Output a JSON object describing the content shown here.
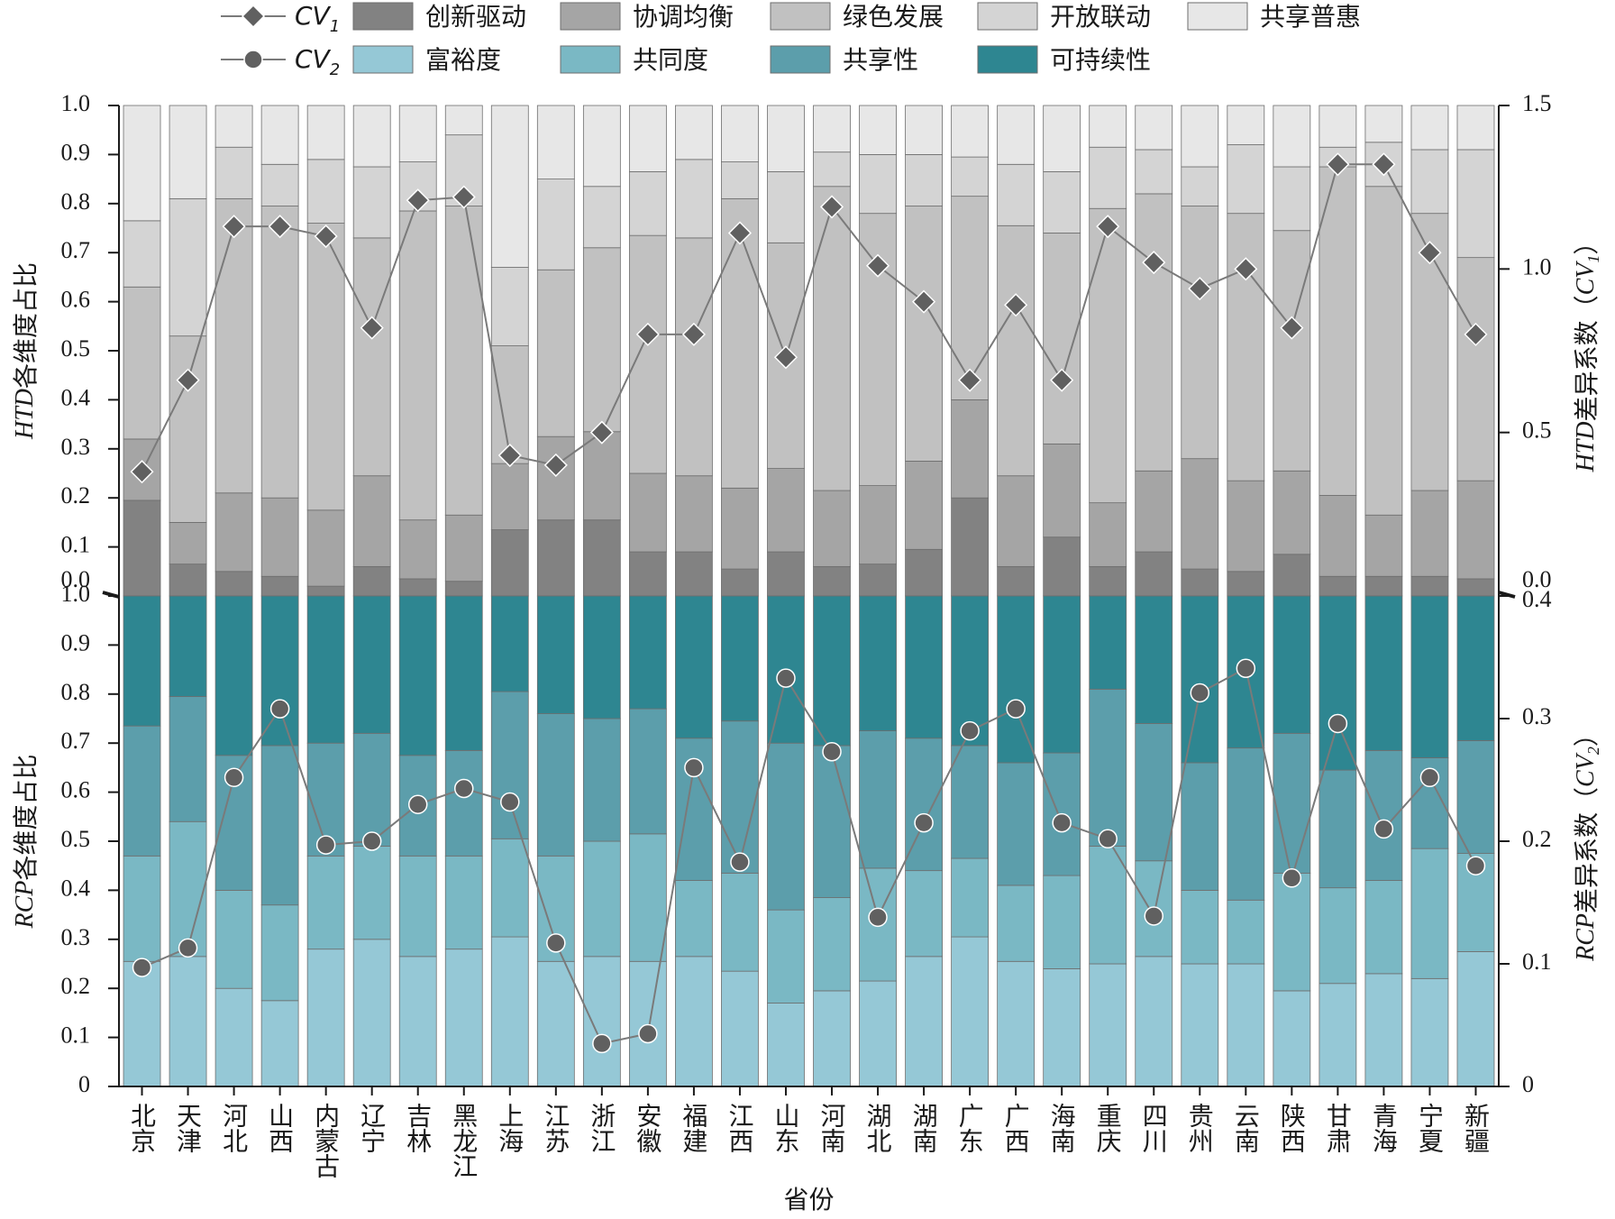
{
  "chart_data": [
    {
      "type": "bar",
      "stacked": true,
      "panel": "HTD",
      "categories": [
        "北京",
        "天津",
        "河北",
        "山西",
        "内蒙古",
        "辽宁",
        "吉林",
        "黑龙江",
        "上海",
        "江苏",
        "浙江",
        "安徽",
        "福建",
        "江西",
        "山东",
        "河南",
        "湖北",
        "湖南",
        "广东",
        "广西",
        "海南",
        "重庆",
        "四川",
        "贵州",
        "云南",
        "陕西",
        "甘肃",
        "青海",
        "宁夏",
        "新疆"
      ],
      "ylabel_prefix": "HTD",
      "ylabel_suffix": "各维度占比",
      "y2label_prefix": "HTD",
      "y2label_suffix": "差异系数（",
      "y2label_var": "CV",
      "y2label_sub": "1",
      "y2label_close": "）",
      "ylim": [
        0,
        1.0
      ],
      "y2lim": [
        0,
        1.5
      ],
      "yticks": [
        "0.0",
        "0.1",
        "0.2",
        "0.3",
        "0.4",
        "0.5",
        "0.6",
        "0.7",
        "0.8",
        "0.9",
        "1.0"
      ],
      "y2ticks": [
        "0.0",
        "0.5",
        "1.0",
        "1.5"
      ],
      "series": [
        {
          "name": "创新驱动",
          "color": "#828282",
          "values": [
            0.195,
            0.065,
            0.05,
            0.04,
            0.02,
            0.06,
            0.035,
            0.03,
            0.135,
            0.155,
            0.155,
            0.09,
            0.09,
            0.055,
            0.09,
            0.06,
            0.065,
            0.095,
            0.2,
            0.06,
            0.12,
            0.06,
            0.09,
            0.055,
            0.05,
            0.085,
            0.04,
            0.04,
            0.04,
            0.035
          ]
        },
        {
          "name": "协调均衡",
          "color": "#a5a5a5",
          "values": [
            0.125,
            0.085,
            0.16,
            0.16,
            0.155,
            0.185,
            0.12,
            0.135,
            0.135,
            0.17,
            0.18,
            0.16,
            0.155,
            0.165,
            0.17,
            0.155,
            0.16,
            0.18,
            0.2,
            0.185,
            0.19,
            0.13,
            0.165,
            0.225,
            0.185,
            0.17,
            0.165,
            0.125,
            0.175,
            0.2
          ]
        },
        {
          "name": "绿色发展",
          "color": "#c1c1c1",
          "values": [
            0.31,
            0.38,
            0.6,
            0.595,
            0.585,
            0.485,
            0.63,
            0.63,
            0.24,
            0.34,
            0.375,
            0.485,
            0.485,
            0.59,
            0.46,
            0.62,
            0.555,
            0.52,
            0.415,
            0.51,
            0.43,
            0.6,
            0.565,
            0.515,
            0.545,
            0.49,
            0.67,
            0.67,
            0.565,
            0.455
          ]
        },
        {
          "name": "开放联动",
          "color": "#d4d4d4",
          "values": [
            0.135,
            0.28,
            0.105,
            0.085,
            0.13,
            0.145,
            0.1,
            0.145,
            0.16,
            0.185,
            0.125,
            0.13,
            0.16,
            0.075,
            0.145,
            0.07,
            0.12,
            0.105,
            0.08,
            0.125,
            0.125,
            0.125,
            0.09,
            0.08,
            0.14,
            0.13,
            0.04,
            0.09,
            0.13,
            0.22
          ]
        },
        {
          "name": "共享普惠",
          "color": "#e7e7e7",
          "values": [
            0.235,
            0.19,
            0.085,
            0.12,
            0.11,
            0.125,
            0.115,
            0.06,
            0.33,
            0.15,
            0.165,
            0.135,
            0.11,
            0.115,
            0.135,
            0.095,
            0.1,
            0.1,
            0.105,
            0.12,
            0.135,
            0.085,
            0.09,
            0.125,
            0.08,
            0.125,
            0.085,
            0.075,
            0.09,
            0.09
          ]
        }
      ],
      "line": {
        "name": "CV",
        "sub": "1",
        "marker": "diamond",
        "values": [
          0.38,
          0.66,
          1.13,
          1.13,
          1.1,
          0.82,
          1.21,
          1.22,
          0.43,
          0.4,
          0.5,
          0.8,
          0.8,
          1.11,
          0.73,
          1.19,
          1.01,
          0.9,
          0.66,
          0.89,
          0.66,
          1.13,
          1.02,
          0.94,
          1.0,
          0.82,
          1.32,
          1.32,
          1.05,
          0.8
        ]
      }
    },
    {
      "type": "bar",
      "stacked": true,
      "panel": "RCP",
      "categories": [
        "北京",
        "天津",
        "河北",
        "山西",
        "内蒙古",
        "辽宁",
        "吉林",
        "黑龙江",
        "上海",
        "江苏",
        "浙江",
        "安徽",
        "福建",
        "江西",
        "山东",
        "河南",
        "湖北",
        "湖南",
        "广东",
        "广西",
        "海南",
        "重庆",
        "四川",
        "贵州",
        "云南",
        "陕西",
        "甘肃",
        "青海",
        "宁夏",
        "新疆"
      ],
      "xlabel": "省份",
      "ylabel_prefix": "RCP",
      "ylabel_suffix": "各维度占比",
      "y2label_prefix": "RCP",
      "y2label_suffix": "差异系数（",
      "y2label_var": "CV",
      "y2label_sub": "2",
      "y2label_close": "）",
      "ylim": [
        0,
        1.0
      ],
      "y2lim": [
        0,
        0.4
      ],
      "yticks": [
        "0",
        "0.1",
        "0.2",
        "0.3",
        "0.4",
        "0.5",
        "0.6",
        "0.7",
        "0.8",
        "0.9",
        "1.0"
      ],
      "y2ticks": [
        "0",
        "0.1",
        "0.2",
        "0.3",
        "0.4"
      ],
      "series": [
        {
          "name": "富裕度",
          "color": "#95c8d6",
          "values": [
            0.255,
            0.265,
            0.2,
            0.175,
            0.28,
            0.3,
            0.265,
            0.28,
            0.305,
            0.255,
            0.265,
            0.255,
            0.265,
            0.235,
            0.17,
            0.195,
            0.215,
            0.265,
            0.305,
            0.255,
            0.24,
            0.25,
            0.265,
            0.25,
            0.25,
            0.195,
            0.21,
            0.23,
            0.22,
            0.275
          ]
        },
        {
          "name": "共同度",
          "color": "#7ab8c4",
          "values": [
            0.215,
            0.275,
            0.2,
            0.195,
            0.19,
            0.19,
            0.205,
            0.19,
            0.2,
            0.215,
            0.235,
            0.26,
            0.155,
            0.2,
            0.19,
            0.19,
            0.23,
            0.175,
            0.16,
            0.155,
            0.19,
            0.24,
            0.195,
            0.15,
            0.13,
            0.24,
            0.195,
            0.19,
            0.265,
            0.2
          ]
        },
        {
          "name": "共享性",
          "color": "#5c9eab",
          "values": [
            0.265,
            0.255,
            0.275,
            0.325,
            0.23,
            0.23,
            0.205,
            0.215,
            0.3,
            0.29,
            0.25,
            0.255,
            0.29,
            0.31,
            0.34,
            0.31,
            0.28,
            0.27,
            0.23,
            0.25,
            0.25,
            0.32,
            0.28,
            0.26,
            0.31,
            0.285,
            0.24,
            0.265,
            0.185,
            0.23
          ]
        },
        {
          "name": "可持续性",
          "color": "#2e8691",
          "values": [
            0.265,
            0.205,
            0.325,
            0.305,
            0.3,
            0.28,
            0.325,
            0.315,
            0.195,
            0.24,
            0.25,
            0.23,
            0.29,
            0.255,
            0.3,
            0.305,
            0.275,
            0.29,
            0.305,
            0.34,
            0.32,
            0.19,
            0.26,
            0.34,
            0.31,
            0.28,
            0.355,
            0.315,
            0.33,
            0.295
          ]
        }
      ],
      "line": {
        "name": "CV",
        "sub": "2",
        "marker": "circle",
        "values": [
          0.097,
          0.113,
          0.252,
          0.308,
          0.197,
          0.2,
          0.23,
          0.243,
          0.232,
          0.117,
          0.035,
          0.043,
          0.26,
          0.183,
          0.333,
          0.273,
          0.138,
          0.215,
          0.29,
          0.308,
          0.215,
          0.202,
          0.139,
          0.321,
          0.341,
          0.17,
          0.296,
          0.21,
          0.252,
          0.18
        ]
      }
    }
  ]
}
